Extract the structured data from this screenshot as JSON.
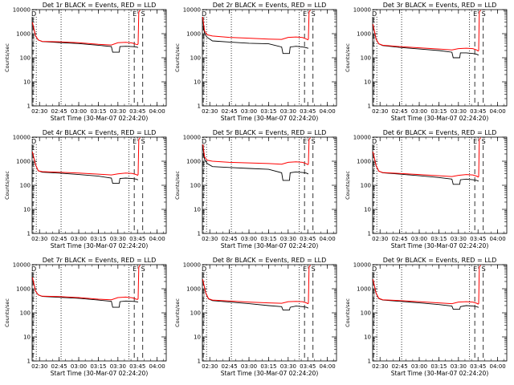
{
  "figure": {
    "x_tick_labels": [
      "02:30",
      "02:45",
      "03:00",
      "03:15",
      "03:30",
      "03:45",
      "04:00"
    ],
    "y_tick_labels": [
      "1",
      "10",
      "100",
      "1000",
      "10000"
    ],
    "ylabel": "Counts/sec",
    "xlabel": "Start Time (30-Mar-07 02:24:20)"
  },
  "chart_data": [
    {
      "type": "line",
      "title": "Det 1r  BLACK = Events, RED = LLD",
      "markers": [
        "D",
        "E",
        "S"
      ],
      "xlabel": "Start Time (30-Mar-07 02:24:20)",
      "ylabel": "Counts/sec",
      "y_scale": "log",
      "ylim": [
        1,
        10000
      ],
      "xlim": [
        "02:24:20",
        "04:07:00"
      ],
      "x_ticks": [
        "02:30",
        "02:45",
        "03:00",
        "03:15",
        "03:30",
        "03:45",
        "04:00"
      ],
      "series": [
        {
          "color": "#000000",
          "x": [
            "02:24:30",
            "02:27:00",
            "02:29:00",
            "02:32:00",
            "02:45:00",
            "03:00:00",
            "03:15:00",
            "03:25:00",
            "03:26:00",
            "03:31:00",
            "03:31:30",
            "03:36:00",
            "03:41:00",
            "03:44:00",
            "03:45:00",
            "03:45:30"
          ],
          "values": [
            3000,
            800,
            550,
            470,
            430,
            390,
            330,
            290,
            170,
            170,
            290,
            300,
            290,
            280,
            270,
            270
          ]
        },
        {
          "color": "#ff0000",
          "x": [
            "02:24:30",
            "02:27:00",
            "02:29:00",
            "02:32:00",
            "02:45:00",
            "03:00:00",
            "03:15:00",
            "03:25:00",
            "03:30:00",
            "03:36:00",
            "03:41:00",
            "03:44:00",
            "03:45:00",
            "03:45:30",
            "03:46:00",
            "03:47:00"
          ],
          "values": [
            3000,
            800,
            550,
            480,
            460,
            420,
            360,
            340,
            420,
            440,
            410,
            360,
            350,
            380,
            8000,
            9500
          ]
        }
      ]
    },
    {
      "type": "line",
      "title": "Det 2r  BLACK = Events, RED = LLD",
      "markers": [
        "D",
        "E",
        "S"
      ],
      "xlabel": "Start Time (30-Mar-07 02:24:20)",
      "ylabel": "Counts/sec",
      "y_scale": "log",
      "ylim": [
        1,
        10000
      ],
      "xlim": [
        "02:24:20",
        "04:07:00"
      ],
      "x_ticks": [
        "02:30",
        "02:45",
        "03:00",
        "03:15",
        "03:30",
        "03:45",
        "04:00"
      ],
      "series": [
        {
          "color": "#000000",
          "x": [
            "02:24:30",
            "02:26:00",
            "02:28:00",
            "02:32:00",
            "02:45:00",
            "03:00:00",
            "03:15:00",
            "03:25:00",
            "03:26:00",
            "03:31:00",
            "03:31:30",
            "03:36:00",
            "03:41:00",
            "03:44:00",
            "03:45:00",
            "03:45:30"
          ],
          "values": [
            4000,
            1000,
            700,
            500,
            450,
            400,
            380,
            280,
            150,
            150,
            280,
            300,
            280,
            260,
            250,
            250
          ]
        },
        {
          "color": "#ff0000",
          "x": [
            "02:24:30",
            "02:26:00",
            "02:28:00",
            "02:32:00",
            "02:45:00",
            "03:00:00",
            "03:15:00",
            "03:25:00",
            "03:30:00",
            "03:36:00",
            "03:41:00",
            "03:44:00",
            "03:45:00",
            "03:45:30",
            "03:46:00",
            "03:47:00"
          ],
          "values": [
            5000,
            1300,
            900,
            800,
            700,
            650,
            600,
            580,
            700,
            730,
            690,
            600,
            560,
            600,
            8000,
            9500
          ]
        }
      ]
    },
    {
      "type": "line",
      "title": "Det 3r  BLACK = Events, RED = LLD",
      "markers": [
        "D",
        "E",
        "S"
      ],
      "xlabel": "Start Time (30-Mar-07 02:24:20)",
      "ylabel": "Counts/sec",
      "y_scale": "log",
      "ylim": [
        1,
        10000
      ],
      "xlim": [
        "02:24:20",
        "04:07:00"
      ],
      "x_ticks": [
        "02:30",
        "02:45",
        "03:00",
        "03:15",
        "03:30",
        "03:45",
        "04:00"
      ],
      "series": [
        {
          "color": "#000000",
          "x": [
            "02:24:30",
            "02:27:00",
            "02:29:00",
            "02:32:00",
            "02:45:00",
            "03:00:00",
            "03:15:00",
            "03:25:00",
            "03:26:00",
            "03:31:00",
            "03:31:30",
            "03:36:00",
            "03:41:00",
            "03:44:00",
            "03:45:00",
            "03:45:30"
          ],
          "values": [
            2500,
            600,
            380,
            320,
            270,
            230,
            200,
            170,
            100,
            100,
            160,
            160,
            150,
            140,
            130,
            130
          ]
        },
        {
          "color": "#ff0000",
          "x": [
            "02:24:30",
            "02:27:00",
            "02:29:00",
            "02:32:00",
            "02:45:00",
            "03:00:00",
            "03:15:00",
            "03:25:00",
            "03:30:00",
            "03:36:00",
            "03:41:00",
            "03:44:00",
            "03:45:00",
            "03:45:30",
            "03:46:00",
            "03:47:00"
          ],
          "values": [
            2500,
            600,
            380,
            330,
            290,
            260,
            230,
            210,
            240,
            250,
            240,
            210,
            190,
            200,
            8000,
            9500
          ]
        }
      ]
    },
    {
      "type": "line",
      "title": "Det 4r  BLACK = Events, RED = LLD",
      "markers": [
        "D",
        "E",
        "S"
      ],
      "xlabel": "Start Time (30-Mar-07 02:24:20)",
      "ylabel": "Counts/sec",
      "y_scale": "log",
      "ylim": [
        1,
        10000
      ],
      "xlim": [
        "02:24:20",
        "04:07:00"
      ],
      "x_ticks": [
        "02:30",
        "02:45",
        "03:00",
        "03:15",
        "03:30",
        "03:45",
        "04:00"
      ],
      "series": [
        {
          "color": "#000000",
          "x": [
            "02:24:30",
            "02:27:00",
            "02:29:00",
            "02:32:00",
            "02:45:00",
            "03:00:00",
            "03:15:00",
            "03:25:00",
            "03:26:00",
            "03:31:00",
            "03:31:30",
            "03:36:00",
            "03:41:00",
            "03:44:00",
            "03:45:00",
            "03:45:30"
          ],
          "values": [
            2500,
            700,
            400,
            350,
            320,
            280,
            240,
            200,
            120,
            120,
            190,
            200,
            190,
            180,
            170,
            170
          ]
        },
        {
          "color": "#ff0000",
          "x": [
            "02:24:30",
            "02:27:00",
            "02:29:00",
            "02:32:00",
            "02:45:00",
            "03:00:00",
            "03:15:00",
            "03:25:00",
            "03:30:00",
            "03:36:00",
            "03:41:00",
            "03:44:00",
            "03:45:00",
            "03:45:30",
            "03:46:00",
            "03:47:00"
          ],
          "values": [
            2500,
            700,
            400,
            370,
            350,
            320,
            290,
            270,
            300,
            320,
            310,
            280,
            260,
            280,
            8000,
            9500
          ]
        }
      ]
    },
    {
      "type": "line",
      "title": "Det 5r  BLACK = Events, RED = LLD",
      "markers": [
        "D",
        "E",
        "S"
      ],
      "xlabel": "Start Time (30-Mar-07 02:24:20)",
      "ylabel": "Counts/sec",
      "y_scale": "log",
      "ylim": [
        1,
        10000
      ],
      "xlim": [
        "02:24:20",
        "04:07:00"
      ],
      "x_ticks": [
        "02:30",
        "02:45",
        "03:00",
        "03:15",
        "03:30",
        "03:45",
        "04:00"
      ],
      "series": [
        {
          "color": "#000000",
          "x": [
            "02:24:30",
            "02:26:00",
            "02:28:00",
            "02:32:00",
            "02:45:00",
            "03:00:00",
            "03:15:00",
            "03:25:00",
            "03:26:00",
            "03:31:00",
            "03:31:30",
            "03:36:00",
            "03:41:00",
            "03:44:00",
            "03:45:00",
            "03:45:30"
          ],
          "values": [
            4500,
            1200,
            800,
            600,
            550,
            500,
            460,
            330,
            160,
            160,
            330,
            360,
            340,
            320,
            300,
            300
          ]
        },
        {
          "color": "#ff0000",
          "x": [
            "02:24:30",
            "02:26:00",
            "02:28:00",
            "02:32:00",
            "02:45:00",
            "03:00:00",
            "03:15:00",
            "03:25:00",
            "03:30:00",
            "03:36:00",
            "03:41:00",
            "03:44:00",
            "03:45:00",
            "03:45:30",
            "03:46:00",
            "03:47:00"
          ],
          "values": [
            6000,
            1500,
            1100,
            1000,
            900,
            850,
            800,
            750,
            900,
            950,
            900,
            780,
            720,
            760,
            8000,
            9500
          ]
        }
      ]
    },
    {
      "type": "line",
      "title": "Det 6r  BLACK = Events, RED = LLD",
      "markers": [
        "D",
        "E",
        "S"
      ],
      "xlabel": "Start Time (30-Mar-07 02:24:20)",
      "ylabel": "Counts/sec",
      "y_scale": "log",
      "ylim": [
        1,
        10000
      ],
      "xlim": [
        "02:24:20",
        "04:07:00"
      ],
      "x_ticks": [
        "02:30",
        "02:45",
        "03:00",
        "03:15",
        "03:30",
        "03:45",
        "04:00"
      ],
      "series": [
        {
          "color": "#000000",
          "x": [
            "02:24:30",
            "02:27:00",
            "02:29:00",
            "02:32:00",
            "02:45:00",
            "03:00:00",
            "03:15:00",
            "03:25:00",
            "03:26:00",
            "03:31:00",
            "03:31:30",
            "03:36:00",
            "03:41:00",
            "03:44:00",
            "03:45:00",
            "03:45:30"
          ],
          "values": [
            2500,
            650,
            390,
            330,
            290,
            250,
            210,
            180,
            110,
            110,
            170,
            180,
            170,
            160,
            150,
            150
          ]
        },
        {
          "color": "#ff0000",
          "x": [
            "02:24:30",
            "02:27:00",
            "02:29:00",
            "02:32:00",
            "02:45:00",
            "03:00:00",
            "03:15:00",
            "03:25:00",
            "03:30:00",
            "03:36:00",
            "03:41:00",
            "03:44:00",
            "03:45:00",
            "03:45:30",
            "03:46:00",
            "03:47:00"
          ],
          "values": [
            2500,
            650,
            390,
            340,
            310,
            280,
            250,
            230,
            260,
            280,
            270,
            240,
            220,
            230,
            8000,
            9500
          ]
        }
      ]
    },
    {
      "type": "line",
      "title": "Det 7r  BLACK = Events, RED = LLD",
      "markers": [
        "D",
        "E",
        "S"
      ],
      "xlabel": "Start Time (30-Mar-07 02:24:20)",
      "ylabel": "Counts/sec",
      "y_scale": "log",
      "ylim": [
        1,
        10000
      ],
      "xlim": [
        "02:24:20",
        "04:07:00"
      ],
      "x_ticks": [
        "02:30",
        "02:45",
        "03:00",
        "03:15",
        "03:30",
        "03:45",
        "04:00"
      ],
      "series": [
        {
          "color": "#000000",
          "x": [
            "02:24:30",
            "02:27:00",
            "02:29:00",
            "02:32:00",
            "02:45:00",
            "03:00:00",
            "03:15:00",
            "03:25:00",
            "03:26:00",
            "03:31:00",
            "03:31:30",
            "03:36:00",
            "03:41:00",
            "03:44:00",
            "03:45:00",
            "03:45:30"
          ],
          "values": [
            3000,
            800,
            560,
            480,
            440,
            400,
            340,
            300,
            170,
            170,
            290,
            310,
            300,
            290,
            280,
            280
          ]
        },
        {
          "color": "#ff0000",
          "x": [
            "02:24:30",
            "02:27:00",
            "02:29:00",
            "02:32:00",
            "02:45:00",
            "03:00:00",
            "03:15:00",
            "03:25:00",
            "03:30:00",
            "03:36:00",
            "03:41:00",
            "03:44:00",
            "03:45:00",
            "03:45:30",
            "03:46:00",
            "03:47:00"
          ],
          "values": [
            3000,
            800,
            560,
            490,
            470,
            430,
            370,
            350,
            430,
            450,
            420,
            370,
            360,
            390,
            8000,
            9500
          ]
        }
      ]
    },
    {
      "type": "line",
      "title": "Det 8r  BLACK = Events, RED = LLD",
      "markers": [
        "D",
        "E",
        "S"
      ],
      "xlabel": "Start Time (30-Mar-07 02:24:20)",
      "ylabel": "Counts/sec",
      "y_scale": "log",
      "ylim": [
        1,
        10000
      ],
      "xlim": [
        "02:24:20",
        "04:07:00"
      ],
      "x_ticks": [
        "02:30",
        "02:45",
        "03:00",
        "03:15",
        "03:30",
        "03:45",
        "04:00"
      ],
      "series": [
        {
          "color": "#000000",
          "x": [
            "02:24:30",
            "02:27:00",
            "02:29:00",
            "02:32:00",
            "02:45:00",
            "03:00:00",
            "03:15:00",
            "03:25:00",
            "03:26:00",
            "03:31:00",
            "03:31:30",
            "03:36:00",
            "03:41:00",
            "03:44:00",
            "03:45:00",
            "03:45:30"
          ],
          "values": [
            2500,
            650,
            380,
            320,
            280,
            240,
            200,
            180,
            130,
            130,
            170,
            190,
            180,
            170,
            160,
            160
          ]
        },
        {
          "color": "#ff0000",
          "x": [
            "02:24:30",
            "02:27:00",
            "02:29:00",
            "02:32:00",
            "02:45:00",
            "03:00:00",
            "03:15:00",
            "03:25:00",
            "03:30:00",
            "03:36:00",
            "03:41:00",
            "03:44:00",
            "03:45:00",
            "03:45:30",
            "03:46:00",
            "03:47:00"
          ],
          "values": [
            2500,
            650,
            390,
            340,
            310,
            280,
            260,
            250,
            290,
            300,
            290,
            260,
            240,
            250,
            8000,
            9500
          ]
        }
      ]
    },
    {
      "type": "line",
      "title": "Det 9r  BLACK = Events, RED = LLD",
      "markers": [
        "D",
        "E",
        "S"
      ],
      "xlabel": "Start Time (30-Mar-07 02:24:20)",
      "ylabel": "Counts/sec",
      "y_scale": "log",
      "ylim": [
        1,
        10000
      ],
      "xlim": [
        "02:24:20",
        "04:07:00"
      ],
      "x_ticks": [
        "02:30",
        "02:45",
        "03:00",
        "03:15",
        "03:30",
        "03:45",
        "04:00"
      ],
      "series": [
        {
          "color": "#000000",
          "x": [
            "02:24:30",
            "02:27:00",
            "02:29:00",
            "02:32:00",
            "02:45:00",
            "03:00:00",
            "03:15:00",
            "03:25:00",
            "03:26:00",
            "03:31:00",
            "03:31:30",
            "03:36:00",
            "03:41:00",
            "03:44:00",
            "03:45:00",
            "03:45:30"
          ],
          "values": [
            2500,
            650,
            390,
            340,
            300,
            260,
            220,
            190,
            140,
            140,
            180,
            200,
            190,
            180,
            170,
            170
          ]
        },
        {
          "color": "#ff0000",
          "x": [
            "02:24:30",
            "02:27:00",
            "02:29:00",
            "02:32:00",
            "02:45:00",
            "03:00:00",
            "03:15:00",
            "03:25:00",
            "03:30:00",
            "03:36:00",
            "03:41:00",
            "03:44:00",
            "03:45:00",
            "03:45:30",
            "03:46:00",
            "03:47:00"
          ],
          "values": [
            2500,
            650,
            400,
            350,
            320,
            290,
            260,
            240,
            280,
            290,
            280,
            250,
            230,
            240,
            8000,
            9500
          ]
        }
      ]
    }
  ]
}
